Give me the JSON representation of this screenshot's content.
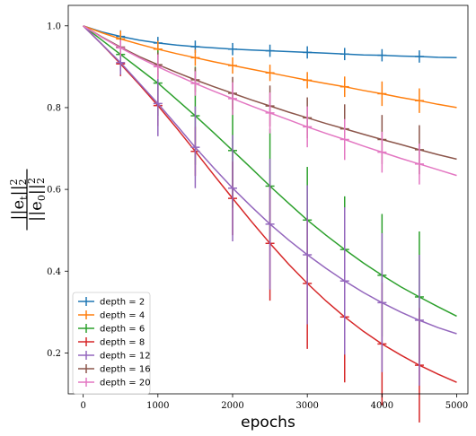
{
  "chart_data": {
    "type": "line",
    "xlabel": "epochs",
    "ylabel": {
      "numerator_base": "||e",
      "numerator_sub": "t",
      "denominator_base": "||e",
      "denominator_sub": "0",
      "norm_sub": "2",
      "power": "2"
    },
    "xlim": [
      -200,
      5150
    ],
    "ylim": [
      0.1,
      1.05
    ],
    "xticks": [
      0,
      1000,
      2000,
      3000,
      4000,
      5000
    ],
    "yticks": [
      0.2,
      0.4,
      0.6,
      0.8,
      1.0
    ],
    "ytick_labels": [
      "0.2",
      "0.4",
      "0.6",
      "0.8",
      "1.0"
    ],
    "grid": false,
    "legend_position": "lower-left",
    "x": [
      0,
      250,
      500,
      750,
      1000,
      1250,
      1500,
      1750,
      2000,
      2250,
      2500,
      2750,
      3000,
      3250,
      3500,
      3750,
      4000,
      4250,
      4500,
      4750,
      5000
    ],
    "errorbar_x": [
      500,
      1000,
      1500,
      2000,
      2500,
      3000,
      3500,
      4000,
      4500
    ],
    "series": [
      {
        "name": "depth = 2",
        "color": "#1f77b4",
        "values": [
          1.0,
          0.985,
          0.974,
          0.965,
          0.958,
          0.953,
          0.949,
          0.946,
          0.943,
          0.941,
          0.939,
          0.937,
          0.935,
          0.933,
          0.931,
          0.929,
          0.928,
          0.926,
          0.925,
          0.923,
          0.922
        ],
        "errors": [
          0.015,
          0.015,
          0.015,
          0.015,
          0.015,
          0.015,
          0.015,
          0.015,
          0.015
        ]
      },
      {
        "name": "depth = 4",
        "color": "#ff7f0e",
        "values": [
          1.0,
          0.983,
          0.968,
          0.955,
          0.943,
          0.932,
          0.922,
          0.912,
          0.903,
          0.894,
          0.885,
          0.876,
          0.867,
          0.859,
          0.851,
          0.842,
          0.834,
          0.825,
          0.817,
          0.808,
          0.8
        ],
        "errors": [
          0.02,
          0.02,
          0.02,
          0.02,
          0.02,
          0.02,
          0.025,
          0.03,
          0.03
        ]
      },
      {
        "name": "depth = 6",
        "color": "#2ca02c",
        "values": [
          1.0,
          0.965,
          0.93,
          0.895,
          0.86,
          0.82,
          0.78,
          0.738,
          0.695,
          0.652,
          0.608,
          0.566,
          0.525,
          0.488,
          0.453,
          0.42,
          0.39,
          0.362,
          0.337,
          0.313,
          0.29
        ],
        "errors": [
          0.04,
          0.08,
          0.12,
          0.14,
          0.14,
          0.13,
          0.13,
          0.15,
          0.16
        ]
      },
      {
        "name": "depth = 8",
        "color": "#d62728",
        "values": [
          1.0,
          0.955,
          0.907,
          0.857,
          0.805,
          0.75,
          0.693,
          0.635,
          0.578,
          0.522,
          0.468,
          0.417,
          0.37,
          0.327,
          0.288,
          0.253,
          0.222,
          0.195,
          0.17,
          0.148,
          0.128
        ],
        "errors": [
          0.03,
          0.05,
          0.06,
          0.09,
          0.14,
          0.16,
          0.16,
          0.15,
          0.14
        ]
      },
      {
        "name": "depth = 12",
        "color": "#9467bd",
        "values": [
          1.0,
          0.955,
          0.91,
          0.86,
          0.81,
          0.757,
          0.703,
          0.652,
          0.603,
          0.558,
          0.515,
          0.476,
          0.44,
          0.407,
          0.376,
          0.348,
          0.323,
          0.3,
          0.28,
          0.262,
          0.247
        ],
        "errors": [
          0.03,
          0.08,
          0.1,
          0.13,
          0.16,
          0.17,
          0.18,
          0.17,
          0.16
        ]
      },
      {
        "name": "depth = 16",
        "color": "#8c564b",
        "values": [
          1.0,
          0.973,
          0.948,
          0.925,
          0.905,
          0.886,
          0.868,
          0.851,
          0.835,
          0.819,
          0.804,
          0.789,
          0.775,
          0.761,
          0.748,
          0.735,
          0.722,
          0.71,
          0.697,
          0.685,
          0.674
        ],
        "errors": [
          0.02,
          0.03,
          0.03,
          0.04,
          0.05,
          0.05,
          0.06,
          0.06,
          0.06
        ]
      },
      {
        "name": "depth = 20",
        "color": "#e377c2",
        "values": [
          1.0,
          0.972,
          0.946,
          0.922,
          0.9,
          0.879,
          0.859,
          0.84,
          0.822,
          0.804,
          0.787,
          0.77,
          0.753,
          0.737,
          0.722,
          0.706,
          0.691,
          0.676,
          0.662,
          0.648,
          0.634
        ],
        "errors": [
          0.02,
          0.03,
          0.03,
          0.04,
          0.05,
          0.05,
          0.05,
          0.05,
          0.05
        ]
      }
    ]
  }
}
